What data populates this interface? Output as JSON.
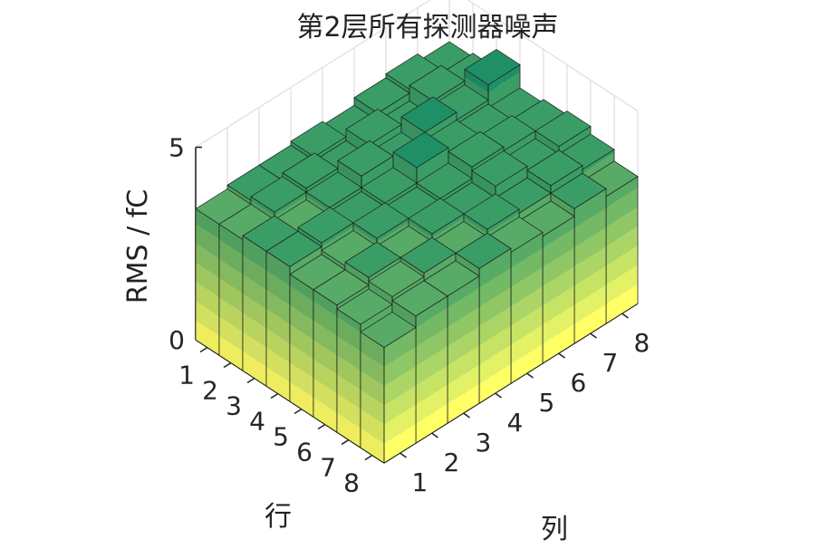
{
  "chart_data": {
    "type": "bar3",
    "title": "第2层所有探测器噪声",
    "zlabel": "RMS / fC",
    "row_label": "行",
    "col_label": "列",
    "row_ticks": [
      "1",
      "2",
      "3",
      "4",
      "5",
      "6",
      "7",
      "8"
    ],
    "col_ticks": [
      "1",
      "2",
      "3",
      "4",
      "5",
      "6",
      "7",
      "8"
    ],
    "z_ticks": [
      "0",
      "5"
    ],
    "zlim": [
      0,
      5
    ],
    "grid": true,
    "colormap": "summer",
    "colormap_colors": [
      "#ffff66",
      "#e3f166",
      "#c7e366",
      "#abd566",
      "#8fc766",
      "#73b966",
      "#57ab66",
      "#3b9d66",
      "#1f8f66",
      "#008066"
    ],
    "values": [
      [
        3.4,
        3.5,
        3.5,
        3.6,
        3.5,
        3.7,
        3.8,
        3.6
      ],
      [
        3.4,
        3.6,
        3.7,
        3.5,
        3.8,
        3.5,
        3.9,
        3.7
      ],
      [
        3.5,
        3.4,
        3.6,
        3.9,
        3.6,
        4.0,
        3.8,
        4.2
      ],
      [
        3.5,
        3.6,
        3.5,
        3.6,
        4.0,
        3.8,
        3.7,
        3.6
      ],
      [
        3.3,
        3.4,
        3.6,
        3.5,
        3.6,
        3.9,
        3.8,
        3.7
      ],
      [
        3.3,
        3.5,
        3.4,
        3.6,
        3.5,
        3.8,
        3.6,
        3.8
      ],
      [
        3.2,
        3.4,
        3.5,
        3.4,
        3.6,
        3.5,
        3.7,
        3.6
      ],
      [
        3.0,
        3.3,
        3.3,
        3.5,
        3.4,
        3.3,
        3.5,
        3.3
      ]
    ]
  }
}
